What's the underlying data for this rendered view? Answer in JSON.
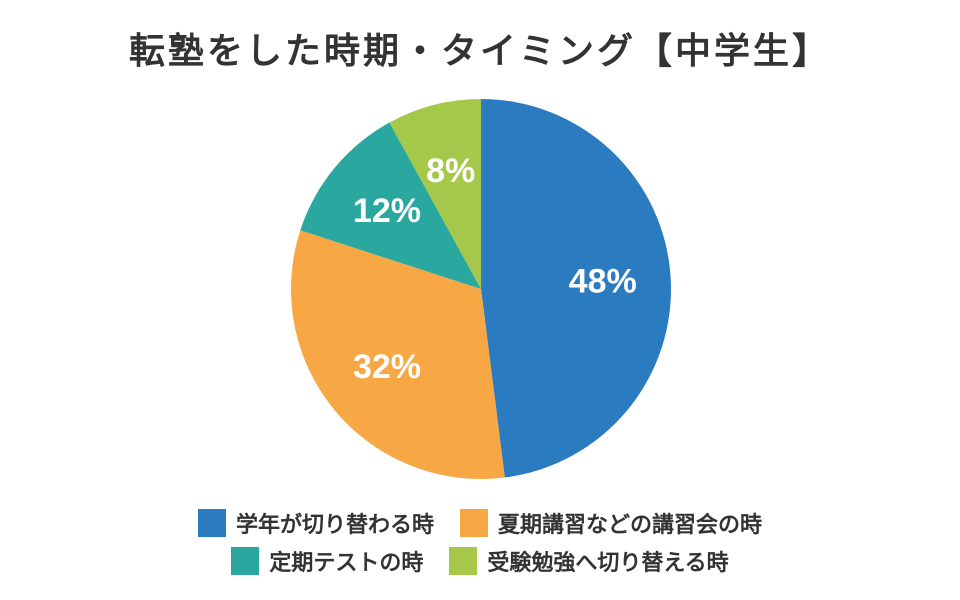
{
  "chart_data": {
    "type": "pie",
    "title": "転塾をした時期・タイミング【中学生】",
    "categories": [
      "学年が切り替わる時",
      "夏期講習などの講習会の時",
      "定期テストの時",
      "受験勉強へ切り替える時"
    ],
    "values": [
      48,
      32,
      12,
      8
    ],
    "value_labels": [
      "48%",
      "32%",
      "12%",
      "8%"
    ],
    "colors": [
      "#2b7bc1",
      "#f7a845",
      "#2aa8a0",
      "#a5c84a"
    ],
    "legend_position": "bottom"
  }
}
